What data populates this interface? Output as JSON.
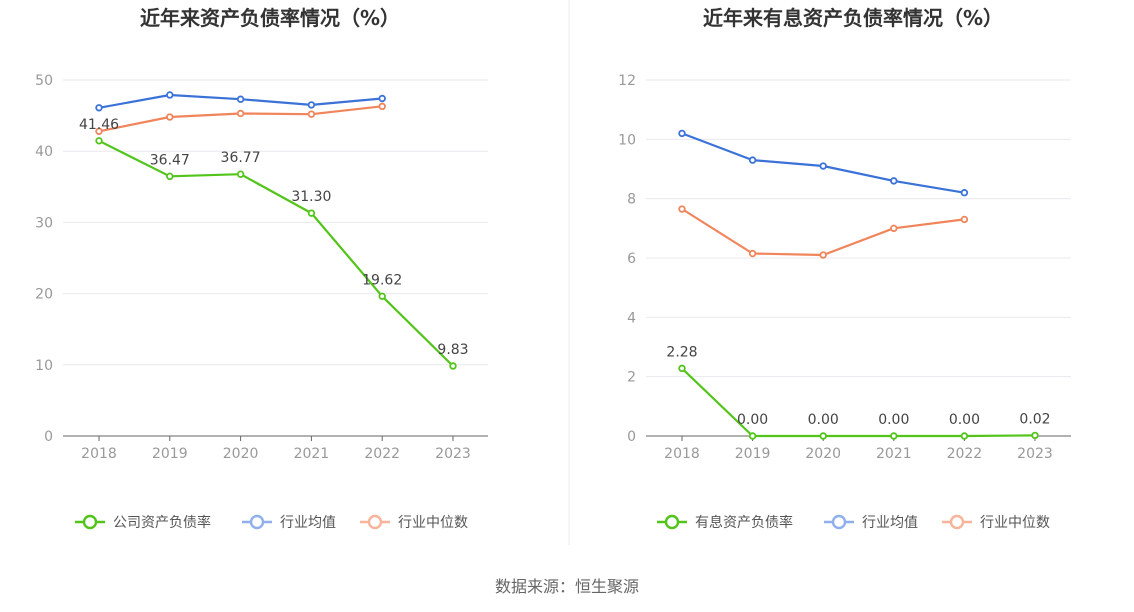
{
  "source_label": "数据来源：恒生聚源",
  "chart_data": [
    {
      "type": "line",
      "title": "近年来资产负债率情况（%）",
      "categories": [
        "2018",
        "2019",
        "2020",
        "2021",
        "2022",
        "2023"
      ],
      "ylim": [
        0,
        50
      ],
      "yticks": [
        0,
        10,
        20,
        30,
        40,
        50
      ],
      "grid": true,
      "legend_position": "bottom",
      "series": [
        {
          "name": "公司资产负债率",
          "color": "#52c41a",
          "values": [
            41.46,
            36.47,
            36.77,
            31.3,
            19.62,
            9.83
          ],
          "labels": [
            "41.46",
            "36.47",
            "36.77",
            "31.30",
            "19.62",
            "9.83"
          ]
        },
        {
          "name": "行业均值",
          "color": "#3a72d8",
          "values": [
            46.1,
            47.9,
            47.3,
            46.5,
            47.4,
            null
          ]
        },
        {
          "name": "行业中位数",
          "color": "#f0845a",
          "values": [
            42.8,
            44.8,
            45.3,
            45.2,
            46.3,
            null
          ]
        }
      ]
    },
    {
      "type": "line",
      "title": "近年来有息资产负债率情况（%）",
      "categories": [
        "2018",
        "2019",
        "2020",
        "2021",
        "2022",
        "2023"
      ],
      "ylim": [
        0,
        12
      ],
      "yticks": [
        0,
        2,
        4,
        6,
        8,
        10,
        12
      ],
      "grid": true,
      "legend_position": "bottom",
      "series": [
        {
          "name": "有息资产负债率",
          "color": "#52c41a",
          "values": [
            2.28,
            0.0,
            0.0,
            0.0,
            0.0,
            0.02
          ],
          "labels": [
            "2.28",
            "0.00",
            "0.00",
            "0.00",
            "0.00",
            "0.02"
          ]
        },
        {
          "name": "行业均值",
          "color": "#3a72d8",
          "values": [
            10.2,
            9.3,
            9.1,
            8.6,
            8.2,
            null
          ]
        },
        {
          "name": "行业中位数",
          "color": "#f0845a",
          "values": [
            7.65,
            6.15,
            6.1,
            7.0,
            7.3,
            null
          ]
        }
      ]
    }
  ]
}
